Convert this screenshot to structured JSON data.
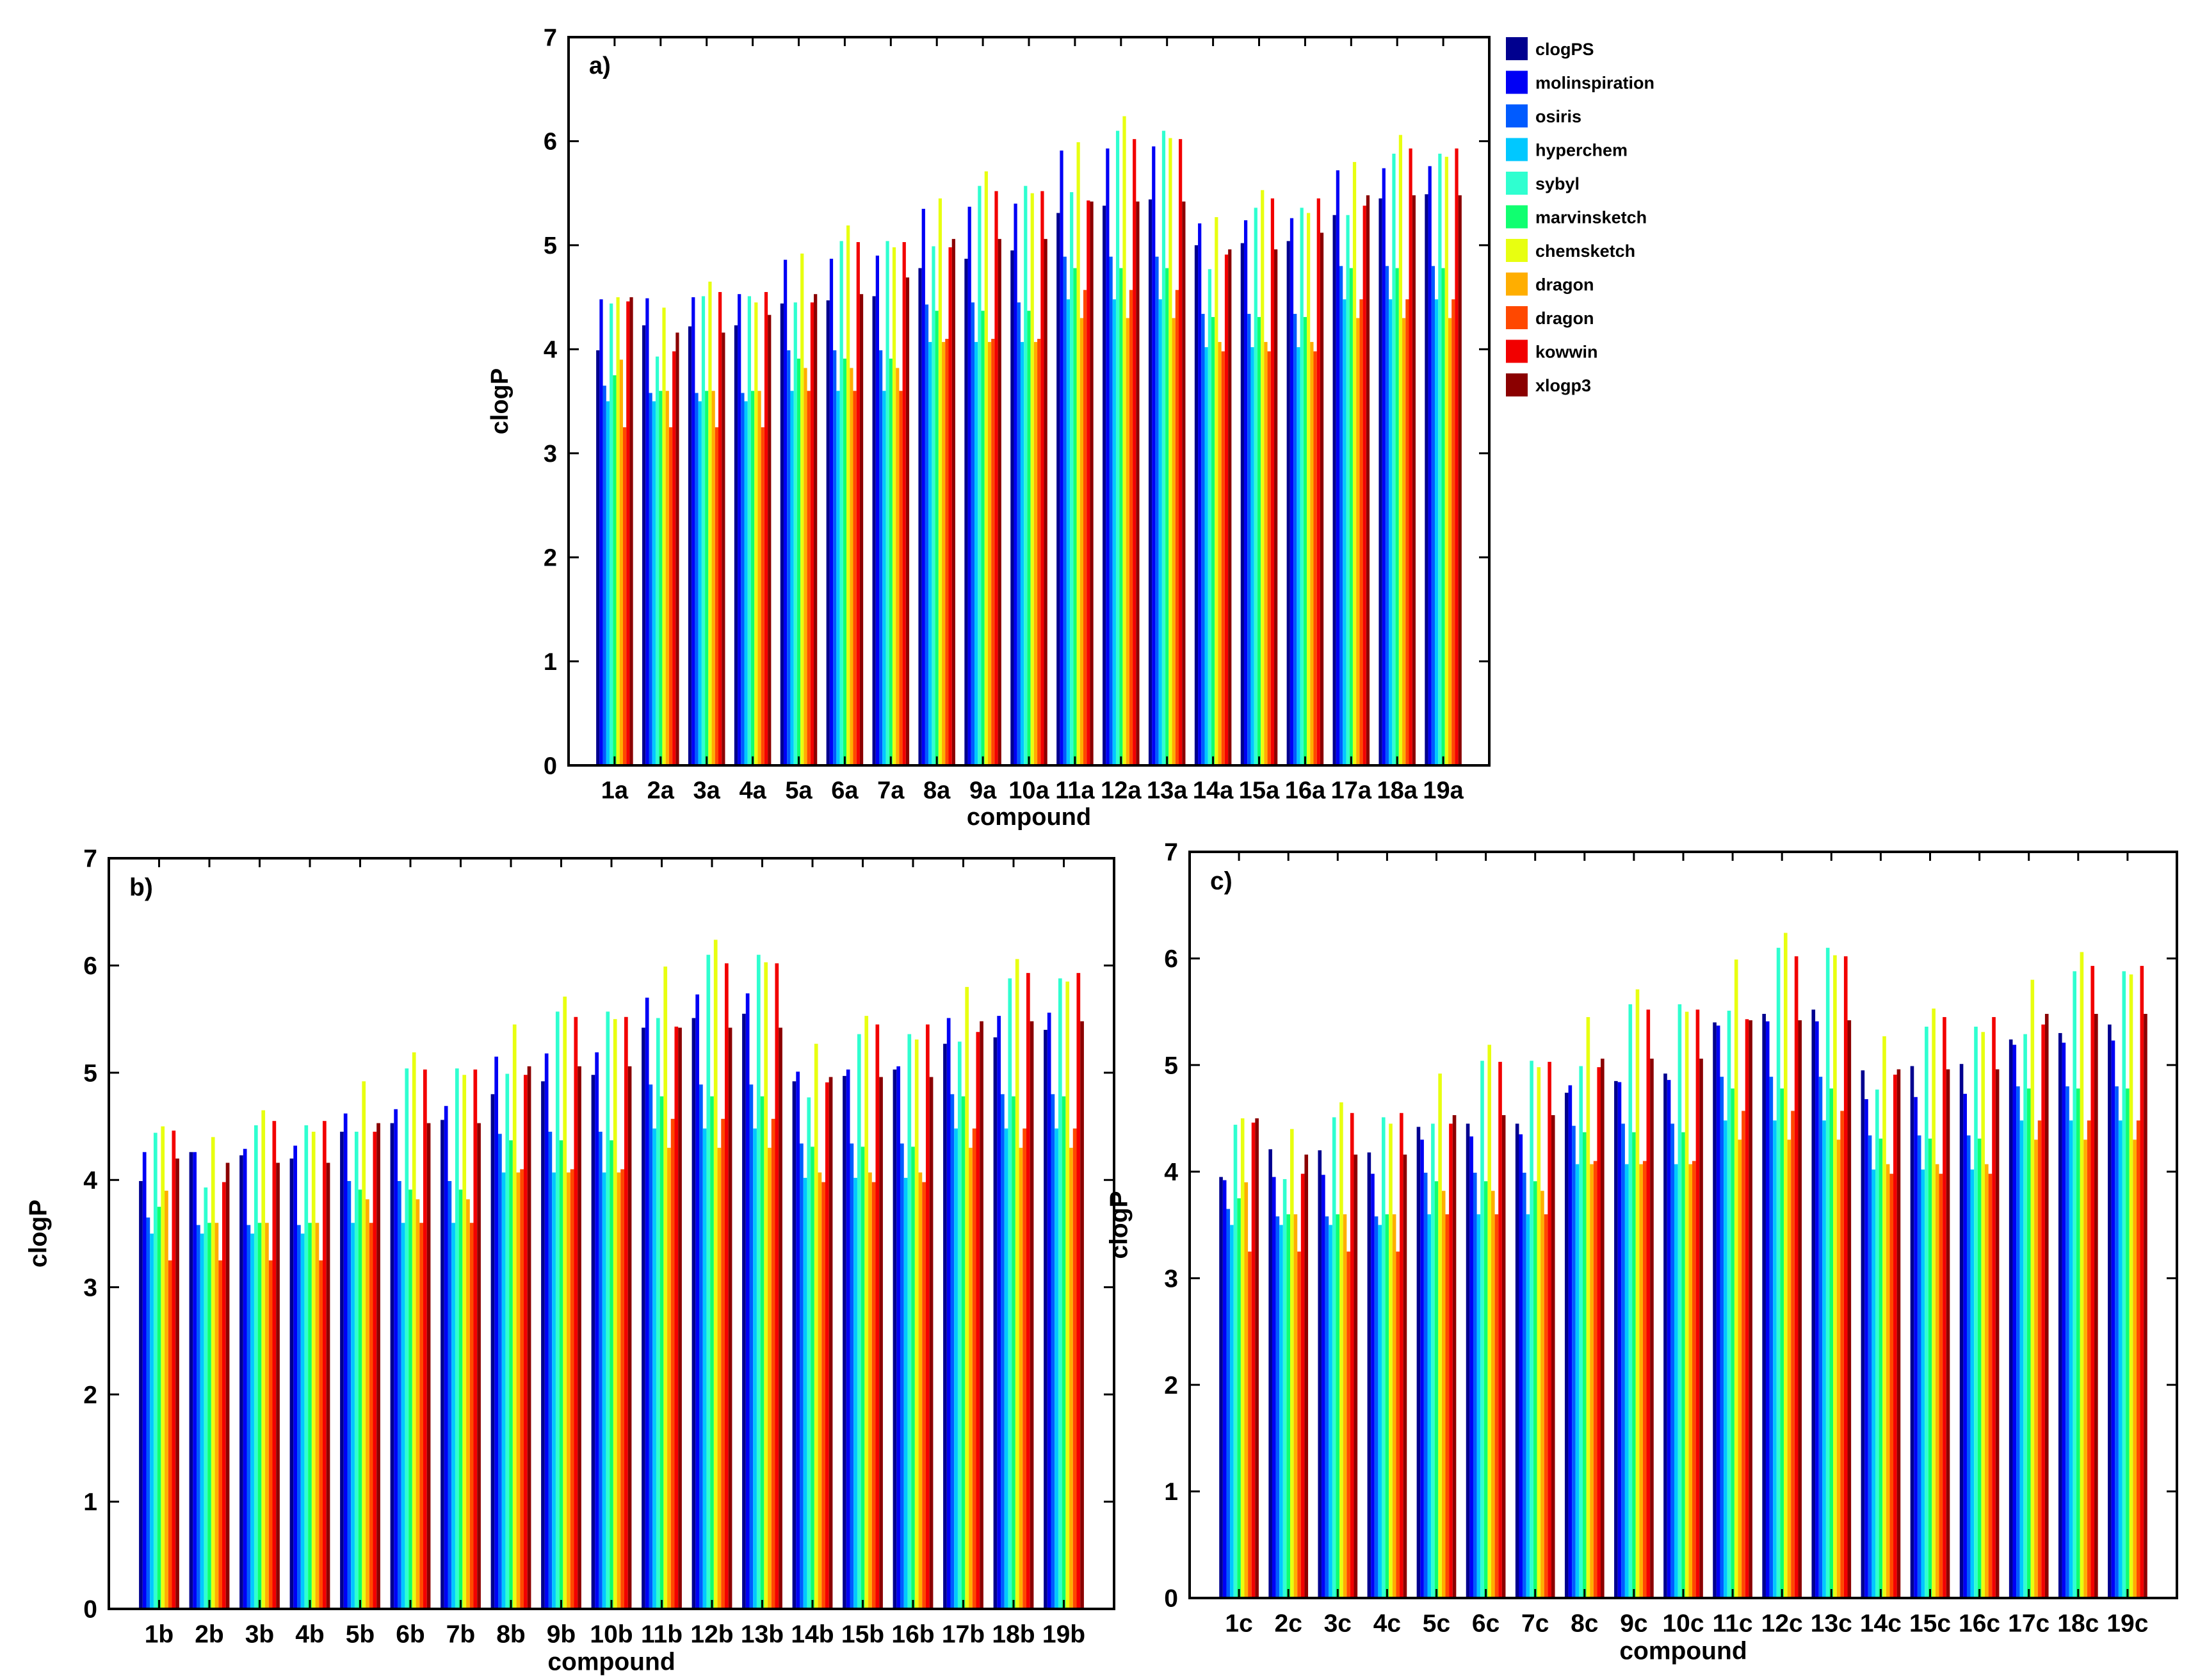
{
  "colors": [
    "#00008f",
    "#0000f5",
    "#005bff",
    "#00c8ff",
    "#2fffd0",
    "#10ff70",
    "#e8ff10",
    "#ffae00",
    "#ff4800",
    "#f20000",
    "#8b0000"
  ],
  "legend": [
    "clogPS",
    "molinspiration",
    "osiris",
    "hyperchem",
    "sybyl",
    "marvinsketch",
    "chemsketch",
    "dragon",
    "dragon",
    "kowwin",
    "xlogp3"
  ],
  "chart_data": [
    {
      "type": "bar",
      "panel_label": "a)",
      "xlabel": "compound",
      "ylabel": "clogP",
      "ylim": [
        0,
        7
      ],
      "yticks": [
        "0",
        "1",
        "2",
        "3",
        "4",
        "5",
        "6",
        "7"
      ],
      "categories": [
        "1a",
        "2a",
        "3a",
        "4a",
        "5a",
        "6a",
        "7a",
        "8a",
        "9a",
        "10a",
        "11a",
        "12a",
        "13a",
        "14a",
        "15a",
        "16a",
        "17a",
        "18a",
        "19a"
      ],
      "series": [
        {
          "name": "clogPS",
          "values": [
            3.99,
            4.23,
            4.22,
            4.23,
            4.44,
            4.47,
            4.51,
            4.78,
            4.87,
            4.95,
            5.31,
            5.38,
            5.44,
            5.0,
            5.02,
            5.04,
            5.29,
            5.45,
            5.49
          ]
        },
        {
          "name": "molinspiration",
          "values": [
            4.48,
            4.49,
            4.5,
            4.53,
            4.86,
            4.87,
            4.9,
            5.35,
            5.37,
            5.4,
            5.91,
            5.93,
            5.95,
            5.21,
            5.24,
            5.26,
            5.72,
            5.74,
            5.76
          ]
        },
        {
          "name": "osiris",
          "values": [
            3.65,
            3.58,
            3.58,
            3.58,
            3.99,
            3.99,
            3.99,
            4.43,
            4.45,
            4.45,
            4.89,
            4.89,
            4.89,
            4.34,
            4.34,
            4.34,
            4.8,
            4.8,
            4.8
          ]
        },
        {
          "name": "hyperchem",
          "values": [
            3.5,
            3.5,
            3.5,
            3.5,
            3.6,
            3.6,
            3.6,
            4.07,
            4.07,
            4.07,
            4.48,
            4.48,
            4.48,
            4.02,
            4.02,
            4.02,
            4.48,
            4.48,
            4.48
          ]
        },
        {
          "name": "sybyl",
          "values": [
            4.44,
            3.93,
            4.51,
            4.51,
            4.45,
            5.04,
            5.04,
            4.99,
            5.57,
            5.57,
            5.51,
            6.1,
            6.1,
            4.77,
            5.36,
            5.36,
            5.29,
            5.88,
            5.88
          ]
        },
        {
          "name": "marvinsketch",
          "values": [
            3.75,
            3.6,
            3.6,
            3.6,
            3.91,
            3.91,
            3.91,
            4.37,
            4.37,
            4.37,
            4.78,
            4.78,
            4.78,
            4.31,
            4.31,
            4.31,
            4.78,
            4.78,
            4.78
          ]
        },
        {
          "name": "chemsketch",
          "values": [
            4.5,
            4.4,
            4.65,
            4.45,
            4.92,
            5.19,
            4.98,
            5.45,
            5.71,
            5.5,
            5.99,
            6.24,
            6.03,
            5.27,
            5.53,
            5.31,
            5.8,
            6.06,
            5.85
          ]
        },
        {
          "name": "dragon",
          "values": [
            3.9,
            3.6,
            3.6,
            3.6,
            3.82,
            3.82,
            3.82,
            4.07,
            4.07,
            4.07,
            4.3,
            4.3,
            4.3,
            4.07,
            4.07,
            4.07,
            4.3,
            4.3,
            4.3
          ]
        },
        {
          "name": "dragon",
          "values": [
            3.25,
            3.25,
            3.25,
            3.25,
            3.6,
            3.6,
            3.6,
            4.1,
            4.1,
            4.1,
            4.57,
            4.57,
            4.57,
            3.98,
            3.98,
            3.98,
            4.48,
            4.48,
            4.48
          ]
        },
        {
          "name": "kowwin",
          "values": [
            4.46,
            3.98,
            4.55,
            4.55,
            4.45,
            5.03,
            5.03,
            4.98,
            5.52,
            5.52,
            5.43,
            6.02,
            6.02,
            4.91,
            5.45,
            5.45,
            5.38,
            5.93,
            5.93
          ]
        },
        {
          "name": "xlogp3",
          "values": [
            4.5,
            4.16,
            4.16,
            4.33,
            4.53,
            4.53,
            4.69,
            5.06,
            5.06,
            5.06,
            5.42,
            5.42,
            5.42,
            4.96,
            4.96,
            5.12,
            5.48,
            5.48,
            5.48
          ]
        }
      ]
    },
    {
      "type": "bar",
      "panel_label": "b)",
      "xlabel": "compound",
      "ylabel": "clogP",
      "ylim": [
        0,
        7
      ],
      "yticks": [
        "0",
        "1",
        "2",
        "3",
        "4",
        "5",
        "6",
        "7"
      ],
      "categories": [
        "1b",
        "2b",
        "3b",
        "4b",
        "5b",
        "6b",
        "7b",
        "8b",
        "9b",
        "10b",
        "11b",
        "12b",
        "13b",
        "14b",
        "15b",
        "16b",
        "17b",
        "18b",
        "19b"
      ],
      "series": [
        {
          "name": "clogPS",
          "values": [
            3.99,
            4.26,
            4.23,
            4.2,
            4.45,
            4.53,
            4.56,
            4.8,
            4.92,
            4.98,
            5.42,
            5.51,
            5.55,
            4.92,
            4.97,
            5.03,
            5.27,
            5.33,
            5.4
          ]
        },
        {
          "name": "molinspiration",
          "values": [
            4.26,
            4.26,
            4.29,
            4.32,
            4.62,
            4.66,
            4.69,
            5.15,
            5.18,
            5.19,
            5.7,
            5.73,
            5.74,
            5.01,
            5.03,
            5.06,
            5.51,
            5.53,
            5.56
          ]
        },
        {
          "name": "osiris",
          "values": [
            3.65,
            3.58,
            3.58,
            3.58,
            3.99,
            3.99,
            3.99,
            4.43,
            4.45,
            4.45,
            4.89,
            4.89,
            4.89,
            4.34,
            4.34,
            4.34,
            4.8,
            4.8,
            4.8
          ]
        },
        {
          "name": "hyperchem",
          "values": [
            3.5,
            3.5,
            3.5,
            3.5,
            3.6,
            3.6,
            3.6,
            4.07,
            4.07,
            4.07,
            4.48,
            4.48,
            4.48,
            4.02,
            4.02,
            4.02,
            4.48,
            4.48,
            4.48
          ]
        },
        {
          "name": "sybyl",
          "values": [
            4.44,
            3.93,
            4.51,
            4.51,
            4.45,
            5.04,
            5.04,
            4.99,
            5.57,
            5.57,
            5.51,
            6.1,
            6.1,
            4.77,
            5.36,
            5.36,
            5.29,
            5.88,
            5.88
          ]
        },
        {
          "name": "marvinsketch",
          "values": [
            3.75,
            3.6,
            3.6,
            3.6,
            3.91,
            3.91,
            3.91,
            4.37,
            4.37,
            4.37,
            4.78,
            4.78,
            4.78,
            4.31,
            4.31,
            4.31,
            4.78,
            4.78,
            4.78
          ]
        },
        {
          "name": "chemsketch",
          "values": [
            4.5,
            4.4,
            4.65,
            4.45,
            4.92,
            5.19,
            4.98,
            5.45,
            5.71,
            5.5,
            5.99,
            6.24,
            6.03,
            5.27,
            5.53,
            5.31,
            5.8,
            6.06,
            5.85
          ]
        },
        {
          "name": "dragon",
          "values": [
            3.9,
            3.6,
            3.6,
            3.6,
            3.82,
            3.82,
            3.82,
            4.07,
            4.07,
            4.07,
            4.3,
            4.3,
            4.3,
            4.07,
            4.07,
            4.07,
            4.3,
            4.3,
            4.3
          ]
        },
        {
          "name": "dragon",
          "values": [
            3.25,
            3.25,
            3.25,
            3.25,
            3.6,
            3.6,
            3.6,
            4.1,
            4.1,
            4.1,
            4.57,
            4.57,
            4.57,
            3.98,
            3.98,
            3.98,
            4.48,
            4.48,
            4.48
          ]
        },
        {
          "name": "kowwin",
          "values": [
            4.46,
            3.98,
            4.55,
            4.55,
            4.45,
            5.03,
            5.03,
            4.98,
            5.52,
            5.52,
            5.43,
            6.02,
            6.02,
            4.91,
            5.45,
            5.45,
            5.38,
            5.93,
            5.93
          ]
        },
        {
          "name": "xlogp3",
          "values": [
            4.2,
            4.16,
            4.16,
            4.16,
            4.53,
            4.53,
            4.53,
            5.06,
            5.06,
            5.06,
            5.42,
            5.42,
            5.42,
            4.96,
            4.96,
            4.96,
            5.48,
            5.48,
            5.48
          ]
        }
      ]
    },
    {
      "type": "bar",
      "panel_label": "c)",
      "xlabel": "compound",
      "ylabel": "clogP",
      "ylim": [
        0,
        7
      ],
      "yticks": [
        "0",
        "1",
        "2",
        "3",
        "4",
        "5",
        "6",
        "7"
      ],
      "categories": [
        "1c",
        "2c",
        "3c",
        "4c",
        "5c",
        "6c",
        "7c",
        "8c",
        "9c",
        "10c",
        "11c",
        "12c",
        "13c",
        "14c",
        "15c",
        "16c",
        "17c",
        "18c",
        "19c"
      ],
      "series": [
        {
          "name": "clogPS",
          "values": [
            3.95,
            4.21,
            4.2,
            4.18,
            4.42,
            4.45,
            4.45,
            4.74,
            4.85,
            4.92,
            5.4,
            5.48,
            5.52,
            4.95,
            4.99,
            5.01,
            5.24,
            5.3,
            5.38
          ]
        },
        {
          "name": "molinspiration",
          "values": [
            3.92,
            3.95,
            3.97,
            3.98,
            4.3,
            4.33,
            4.35,
            4.81,
            4.84,
            4.86,
            5.37,
            5.41,
            5.41,
            4.68,
            4.7,
            4.73,
            5.19,
            5.21,
            5.23
          ]
        },
        {
          "name": "osiris",
          "values": [
            3.65,
            3.58,
            3.58,
            3.58,
            3.99,
            3.99,
            3.99,
            4.43,
            4.45,
            4.45,
            4.89,
            4.89,
            4.89,
            4.34,
            4.34,
            4.34,
            4.8,
            4.8,
            4.8
          ]
        },
        {
          "name": "hyperchem",
          "values": [
            3.5,
            3.5,
            3.5,
            3.5,
            3.6,
            3.6,
            3.6,
            4.07,
            4.07,
            4.07,
            4.48,
            4.48,
            4.48,
            4.02,
            4.02,
            4.02,
            4.48,
            4.48,
            4.48
          ]
        },
        {
          "name": "sybyl",
          "values": [
            4.44,
            3.93,
            4.51,
            4.51,
            4.45,
            5.04,
            5.04,
            4.99,
            5.57,
            5.57,
            5.51,
            6.1,
            6.1,
            4.77,
            5.36,
            5.36,
            5.29,
            5.88,
            5.88
          ]
        },
        {
          "name": "marvinsketch",
          "values": [
            3.75,
            3.6,
            3.6,
            3.6,
            3.91,
            3.91,
            3.91,
            4.37,
            4.37,
            4.37,
            4.78,
            4.78,
            4.78,
            4.31,
            4.31,
            4.31,
            4.78,
            4.78,
            4.78
          ]
        },
        {
          "name": "chemsketch",
          "values": [
            4.5,
            4.4,
            4.65,
            4.45,
            4.92,
            5.19,
            4.98,
            5.45,
            5.71,
            5.5,
            5.99,
            6.24,
            6.03,
            5.27,
            5.53,
            5.31,
            5.8,
            6.06,
            5.85
          ]
        },
        {
          "name": "dragon",
          "values": [
            3.9,
            3.6,
            3.6,
            3.6,
            3.82,
            3.82,
            3.82,
            4.07,
            4.07,
            4.07,
            4.3,
            4.3,
            4.3,
            4.07,
            4.07,
            4.07,
            4.3,
            4.3,
            4.3
          ]
        },
        {
          "name": "dragon",
          "values": [
            3.25,
            3.25,
            3.25,
            3.25,
            3.6,
            3.6,
            3.6,
            4.1,
            4.1,
            4.1,
            4.57,
            4.57,
            4.57,
            3.98,
            3.98,
            3.98,
            4.48,
            4.48,
            4.48
          ]
        },
        {
          "name": "kowwin",
          "values": [
            4.46,
            3.98,
            4.55,
            4.55,
            4.45,
            5.03,
            5.03,
            4.98,
            5.52,
            5.52,
            5.43,
            6.02,
            6.02,
            4.91,
            5.45,
            5.45,
            5.38,
            5.93,
            5.93
          ]
        },
        {
          "name": "xlogp3",
          "values": [
            4.5,
            4.16,
            4.16,
            4.16,
            4.53,
            4.53,
            4.53,
            5.06,
            5.06,
            5.06,
            5.42,
            5.42,
            5.42,
            4.96,
            4.96,
            4.96,
            5.48,
            5.48,
            5.48
          ]
        }
      ]
    }
  ]
}
